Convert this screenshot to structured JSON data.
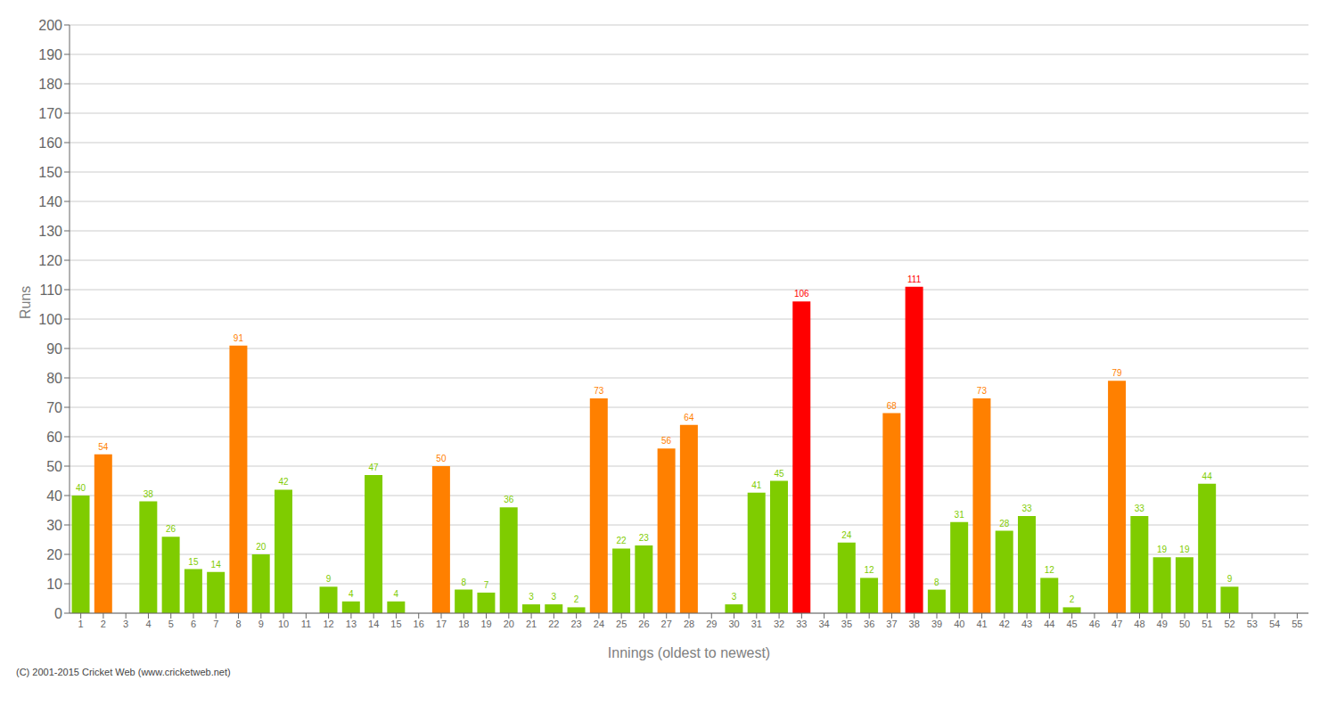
{
  "chart_data": {
    "type": "bar",
    "xlabel": "Innings (oldest to newest)",
    "ylabel": "Runs",
    "categories": [
      "1",
      "2",
      "3",
      "4",
      "5",
      "6",
      "7",
      "8",
      "9",
      "10",
      "11",
      "12",
      "13",
      "14",
      "15",
      "16",
      "17",
      "18",
      "19",
      "20",
      "21",
      "22",
      "23",
      "24",
      "25",
      "26",
      "27",
      "28",
      "29",
      "30",
      "31",
      "32",
      "33",
      "34",
      "35",
      "36",
      "37",
      "38",
      "39",
      "40",
      "41",
      "42",
      "43",
      "44",
      "45",
      "46",
      "47",
      "48",
      "49",
      "50",
      "51",
      "52",
      "53",
      "54",
      "55"
    ],
    "values": [
      40,
      54,
      0,
      38,
      26,
      15,
      14,
      91,
      20,
      42,
      0,
      9,
      4,
      47,
      4,
      0,
      50,
      8,
      7,
      36,
      3,
      3,
      2,
      73,
      22,
      23,
      56,
      64,
      0,
      3,
      41,
      45,
      106,
      0,
      24,
      12,
      68,
      111,
      8,
      31,
      73,
      28,
      33,
      12,
      2,
      0,
      79,
      33,
      19,
      19,
      44,
      9,
      0,
      0,
      0
    ],
    "colors": [
      "#7FCC00",
      "#FF8000",
      "#7FCC00",
      "#7FCC00",
      "#7FCC00",
      "#7FCC00",
      "#7FCC00",
      "#FF8000",
      "#7FCC00",
      "#7FCC00",
      "#7FCC00",
      "#7FCC00",
      "#7FCC00",
      "#7FCC00",
      "#7FCC00",
      "#7FCC00",
      "#FF8000",
      "#7FCC00",
      "#7FCC00",
      "#7FCC00",
      "#7FCC00",
      "#7FCC00",
      "#7FCC00",
      "#FF8000",
      "#7FCC00",
      "#7FCC00",
      "#FF8000",
      "#FF8000",
      "#7FCC00",
      "#7FCC00",
      "#7FCC00",
      "#7FCC00",
      "#FF0000",
      "#7FCC00",
      "#7FCC00",
      "#7FCC00",
      "#FF8000",
      "#FF0000",
      "#7FCC00",
      "#7FCC00",
      "#FF8000",
      "#7FCC00",
      "#7FCC00",
      "#7FCC00",
      "#7FCC00",
      "#7FCC00",
      "#FF8000",
      "#7FCC00",
      "#7FCC00",
      "#7FCC00",
      "#7FCC00",
      "#7FCC00",
      "#7FCC00",
      "#7FCC00",
      "#7FCC00"
    ],
    "ylim": [
      0,
      200
    ],
    "yticks": [
      0,
      10,
      20,
      30,
      40,
      50,
      60,
      70,
      80,
      90,
      100,
      110,
      120,
      130,
      140,
      150,
      160,
      170,
      180,
      190,
      200
    ],
    "grid": true,
    "data_labels": true,
    "annotations": [
      "(C) 2001-2015 Cricket Web (www.cricketweb.net)"
    ]
  }
}
